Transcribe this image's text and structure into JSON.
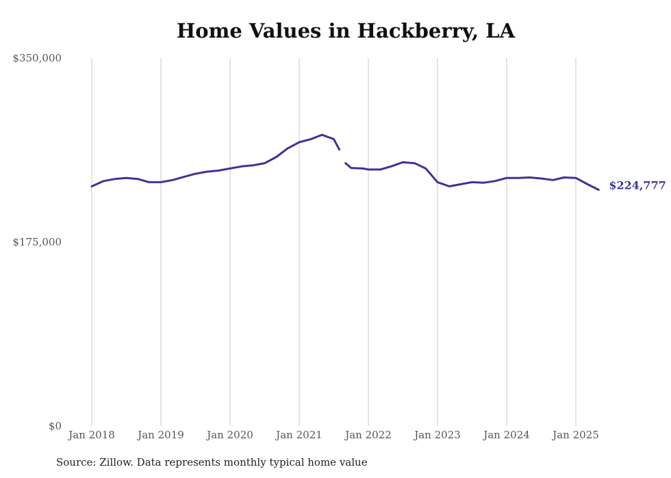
{
  "chart_data": {
    "type": "line",
    "title": "Home Values in Hackberry, LA",
    "xlabel": "",
    "ylabel": "",
    "ylim": [
      0,
      350000
    ],
    "yticks": [
      0,
      175000,
      350000
    ],
    "ytick_labels": [
      "$0",
      "$175,000",
      "$350,000"
    ],
    "xticks": [
      2018,
      2019,
      2020,
      2021,
      2022,
      2023,
      2024,
      2025
    ],
    "xtick_labels": [
      "Jan 2018",
      "Jan 2019",
      "Jan 2020",
      "Jan 2021",
      "Jan 2022",
      "Jan 2023",
      "Jan 2024",
      "Jan 2025"
    ],
    "grid": "vertical",
    "line_color": "#3b3498",
    "end_label": "$224,777",
    "series": [
      {
        "segments": [
          [
            [
              2018.0,
              228000
            ],
            [
              2018.17,
              233000
            ],
            [
              2018.33,
              235000
            ],
            [
              2018.5,
              236000
            ],
            [
              2018.67,
              235000
            ],
            [
              2018.83,
              232000
            ],
            [
              2019.0,
              232000
            ],
            [
              2019.17,
              234000
            ],
            [
              2019.33,
              237000
            ],
            [
              2019.5,
              240000
            ],
            [
              2019.67,
              242000
            ],
            [
              2019.83,
              243000
            ],
            [
              2020.0,
              245000
            ],
            [
              2020.17,
              247000
            ],
            [
              2020.33,
              248000
            ],
            [
              2020.5,
              250000
            ],
            [
              2020.67,
              256000
            ],
            [
              2020.83,
              264000
            ],
            [
              2021.0,
              270000
            ],
            [
              2021.17,
              273000
            ],
            [
              2021.33,
              277000
            ],
            [
              2021.5,
              273000
            ],
            [
              2021.58,
              263000
            ]
          ],
          [
            [
              2021.67,
              250000
            ],
            [
              2021.75,
              245500
            ],
            [
              2021.92,
              245000
            ],
            [
              2022.0,
              244000
            ],
            [
              2022.17,
              244000
            ],
            [
              2022.33,
              247000
            ],
            [
              2022.5,
              251000
            ],
            [
              2022.67,
              250000
            ],
            [
              2022.83,
              245000
            ],
            [
              2023.0,
              232000
            ],
            [
              2023.17,
              228000
            ],
            [
              2023.33,
              230000
            ],
            [
              2023.5,
              232000
            ],
            [
              2023.67,
              231500
            ],
            [
              2023.83,
              233000
            ],
            [
              2024.0,
              236000
            ],
            [
              2024.17,
              236000
            ],
            [
              2024.33,
              236500
            ],
            [
              2024.5,
              235500
            ],
            [
              2024.67,
              234000
            ],
            [
              2024.83,
              236500
            ],
            [
              2025.0,
              236000
            ],
            [
              2025.17,
              230000
            ],
            [
              2025.33,
              224777
            ]
          ]
        ]
      }
    ]
  },
  "footer": {
    "source": "Source: Zillow. Data represents monthly typical home value"
  }
}
